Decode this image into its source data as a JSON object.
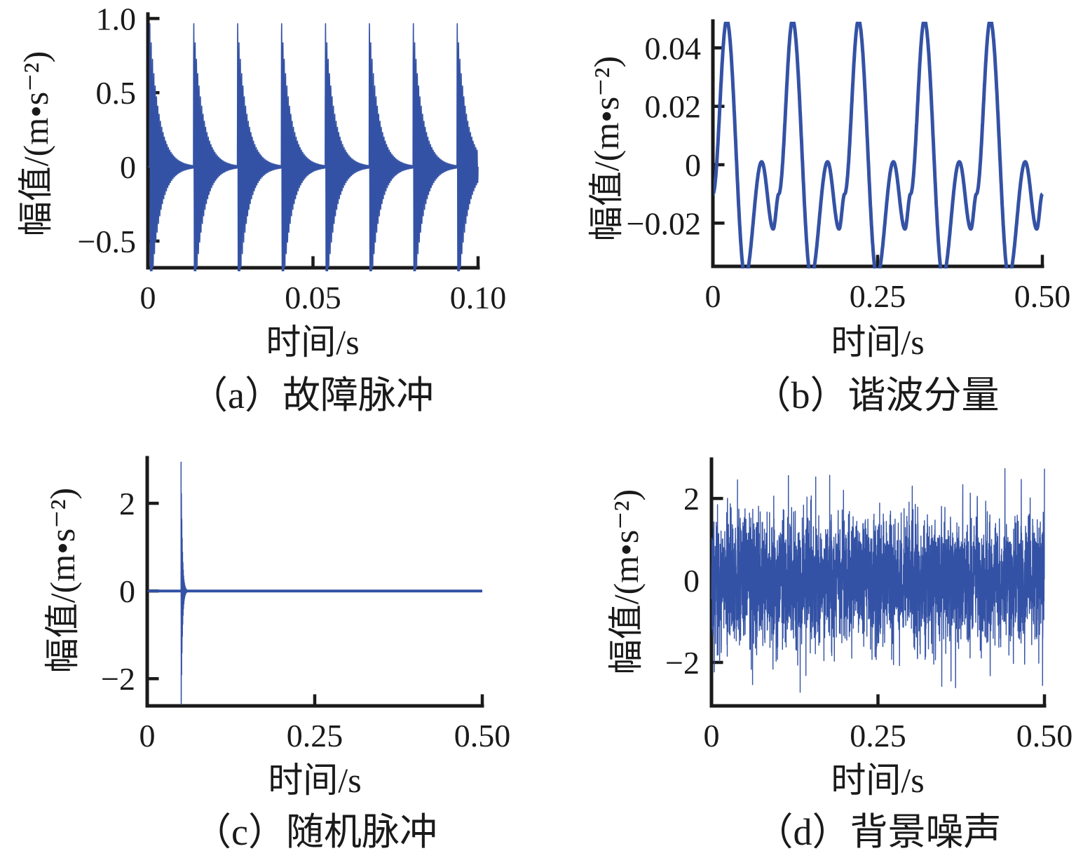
{
  "figure": {
    "background": "#ffffff",
    "line_color": "#3452a5",
    "axis_color": "#1a1a1a"
  },
  "chart_data": [
    {
      "id": "a",
      "type": "line",
      "title": "（a）故障脉冲",
      "xlabel": "时间/s",
      "ylabel": "幅值/(m•s⁻²)",
      "xlim": [
        0,
        0.1
      ],
      "ylim": [
        -0.68,
        1.03
      ],
      "grid": false,
      "legend": null,
      "xticks": [
        {
          "v": 0,
          "label": "0"
        },
        {
          "v": 0.05,
          "label": "0.05"
        },
        {
          "v": 0.1,
          "label": "0.10"
        }
      ],
      "yticks": [
        {
          "v": 1.0,
          "label": "1.0"
        },
        {
          "v": 0.5,
          "label": "0.5"
        },
        {
          "v": 0,
          "label": "0"
        },
        {
          "v": -0.5,
          "label": "−0.5"
        }
      ],
      "signal": {
        "kind": "impulse_train",
        "description": "periodic decaying high-frequency fault impulses, peak amplitude 1.0, clipped at axis bottom",
        "first_impulse_s": 0.0005,
        "period_s": 0.0133,
        "count": 8,
        "amplitude": 1.0,
        "decay_tau_s": 0.0028,
        "carrier_hz": 2500
      }
    },
    {
      "id": "b",
      "type": "line",
      "title": "（b）谐波分量",
      "xlabel": "时间/s",
      "ylabel": "幅值/(m•s⁻²)",
      "xlim": [
        0,
        0.5
      ],
      "ylim": [
        -0.0348,
        0.0492
      ],
      "grid": false,
      "legend": null,
      "xticks": [
        {
          "v": 0,
          "label": "0"
        },
        {
          "v": 0.25,
          "label": "0.25"
        },
        {
          "v": 0.5,
          "label": "0.50"
        }
      ],
      "yticks": [
        {
          "v": 0.04,
          "label": "0.04"
        },
        {
          "v": 0.02,
          "label": "0.02"
        },
        {
          "v": 0,
          "label": "0"
        },
        {
          "v": -0.02,
          "label": "−0.02"
        }
      ],
      "signal": {
        "kind": "harmonic",
        "description": "sum of harmonic components, fundamental period 0.1 s; big peak ~0.05, deep minimum ~-0.038 (clipped), small peak ~0.001, shallow minimum ~-0.022 per period",
        "period_s": 0.1,
        "keypoints_per_period": [
          [
            0,
            -0.01
          ],
          [
            0.21,
            0.0495
          ],
          [
            0.49,
            -0.0385
          ],
          [
            0.74,
            0.001
          ],
          [
            0.915,
            -0.022
          ],
          [
            1,
            -0.01
          ]
        ]
      }
    },
    {
      "id": "c",
      "type": "line",
      "title": "（c）随机脉冲",
      "xlabel": "时间/s",
      "ylabel": "幅值/(m•s⁻²)",
      "xlim": [
        0,
        0.5
      ],
      "ylim": [
        -2.62,
        3.04
      ],
      "grid": false,
      "legend": null,
      "xticks": [
        {
          "v": 0,
          "label": "0"
        },
        {
          "v": 0.25,
          "label": "0.25"
        },
        {
          "v": 0.5,
          "label": "0.50"
        }
      ],
      "yticks": [
        {
          "v": 2,
          "label": "2"
        },
        {
          "v": 0,
          "label": "0"
        },
        {
          "v": -2,
          "label": "−2"
        }
      ],
      "signal": {
        "kind": "single_impulse",
        "description": "single random impulse at t≈0.05 s, peak ≈ +3.0 / −2.6, zero baseline elsewhere",
        "t0_s": 0.0505,
        "amplitude": 3.05,
        "negative_peak": -2.62,
        "decay_tau_s": 0.0018,
        "carrier_hz": 1800
      }
    },
    {
      "id": "d",
      "type": "line",
      "title": "（d）背景噪声",
      "xlabel": "时间/s",
      "ylabel": "幅值/(m•s⁻²)",
      "xlim": [
        0,
        0.5
      ],
      "ylim": [
        -3.06,
        2.96
      ],
      "grid": false,
      "legend": null,
      "xticks": [
        {
          "v": 0,
          "label": "0"
        },
        {
          "v": 0.25,
          "label": "0.25"
        },
        {
          "v": 0.5,
          "label": "0.50"
        }
      ],
      "yticks": [
        {
          "v": 2,
          "label": "2"
        },
        {
          "v": 0,
          "label": "0"
        },
        {
          "v": -2,
          "label": "−2"
        }
      ],
      "signal": {
        "kind": "noise",
        "description": "gaussian background noise, std ≈ 0.8, dense band within ±1.5 with spikes to ≈ ±2.9",
        "sigma": 0.8,
        "n_samples": 3000,
        "seed": 20,
        "clip": 2.95
      }
    }
  ],
  "layout_note": "four panels arranged 2x2, axes drawn with left+bottom spines, inward ticks"
}
